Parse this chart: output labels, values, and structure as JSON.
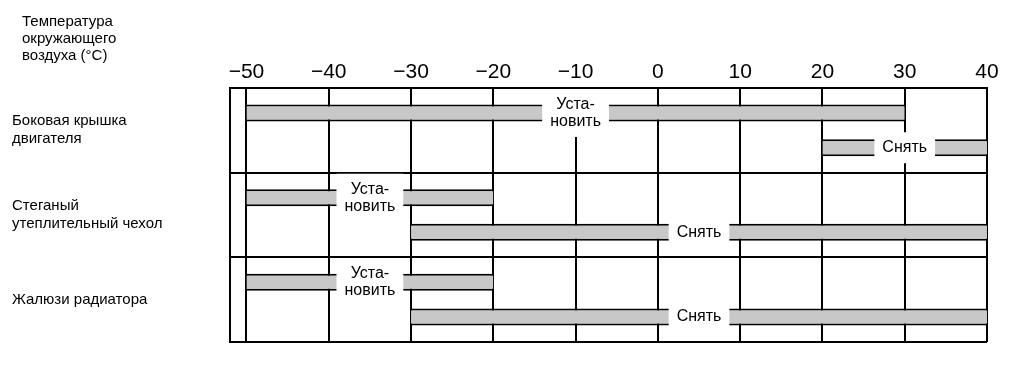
{
  "chart_data": {
    "type": "bar",
    "orientation": "horizontal",
    "xlabel": "Температура окружающего воздуха (°C)",
    "categories": [
      "Боковая крышка двигателя",
      "Стеганый утеплительный чехол",
      "Жалюзи радиатора"
    ],
    "series": [
      {
        "name": "Уста-\nновить",
        "color": "#c8c8c8",
        "base": [
          -50,
          -50,
          -50
        ],
        "values": [
          80,
          30,
          30
        ]
      },
      {
        "name": "Снять",
        "color": "#c8c8c8",
        "base": [
          20,
          -30,
          -30
        ],
        "values": [
          20,
          70,
          70
        ]
      }
    ],
    "xlim": [
      -52,
      40
    ],
    "xticks": [
      -50,
      -40,
      -30,
      -20,
      -10,
      0,
      10,
      20,
      30,
      40
    ],
    "grid": true
  }
}
